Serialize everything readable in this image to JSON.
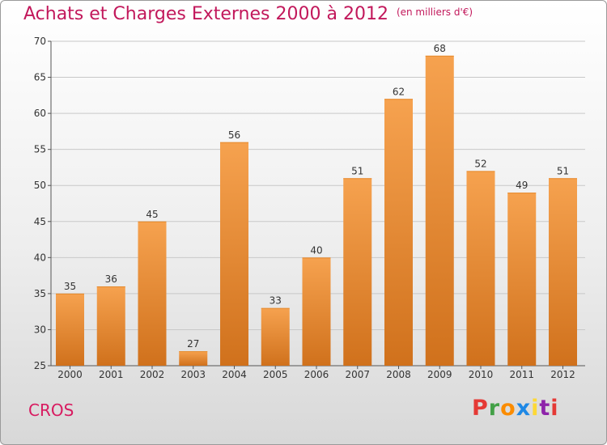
{
  "header": {
    "title": "Achats et Charges Externes 2000 à 2012",
    "subtitle": "(en milliers d'€)"
  },
  "footer": {
    "commune": "CROS",
    "logo": "Proxiti",
    "logo_colors": [
      "#e53935",
      "#43a047",
      "#fb8c00",
      "#1e88e5",
      "#fdd835",
      "#8e24aa",
      "#e53935"
    ]
  },
  "chart_data": {
    "type": "bar",
    "title": "Achats et Charges Externes 2000 à 2012",
    "subtitle": "(en milliers d'€)",
    "categories": [
      "2000",
      "2001",
      "2002",
      "2003",
      "2004",
      "2005",
      "2006",
      "2007",
      "2008",
      "2009",
      "2010",
      "2011",
      "2012"
    ],
    "values": [
      35,
      36,
      45,
      27,
      56,
      33,
      40,
      51,
      62,
      68,
      52,
      49,
      51
    ],
    "data_labels": [
      "35",
      "36",
      "45",
      "27",
      "56",
      "33",
      "40",
      "51",
      "62",
      "68",
      "52",
      "49",
      "51"
    ],
    "ylim": [
      25,
      70
    ],
    "yticks": [
      25,
      30,
      35,
      40,
      45,
      50,
      55,
      60,
      65,
      70
    ],
    "ytick_labels": [
      "25",
      "30",
      "35",
      "40",
      "45",
      "50",
      "55",
      "60",
      "65",
      "70"
    ],
    "grid": true,
    "colors": {
      "bar_light": "#f6a24f",
      "bar_dark": "#d0711c",
      "grid": "#c8c8c8",
      "axis": "#555555",
      "text": "#333333"
    }
  }
}
